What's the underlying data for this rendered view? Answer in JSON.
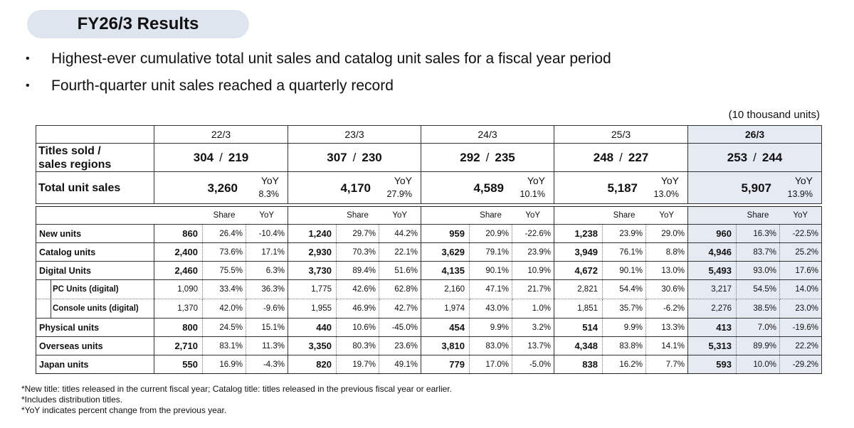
{
  "title": "FY26/3 Results",
  "bullets": [
    "Highest-ever cumulative total unit sales and catalog unit sales for a fiscal year period",
    "Fourth-quarter unit sales reached a quarterly record"
  ],
  "unit_note": "(10 thousand units)",
  "summary": {
    "periods": [
      "22/3",
      "23/3",
      "24/3",
      "25/3",
      "26/3"
    ],
    "titles_label_line1": "Titles sold /",
    "titles_label_line2": "sales regions",
    "titles": [
      {
        "a": "304",
        "b": "219"
      },
      {
        "a": "307",
        "b": "230"
      },
      {
        "a": "292",
        "b": "235"
      },
      {
        "a": "248",
        "b": "227"
      },
      {
        "a": "253",
        "b": "244"
      }
    ],
    "slash": "/",
    "total_label": "Total unit sales",
    "yoy_label": "YoY",
    "totals": [
      {
        "value": "3,260",
        "yoy": "8.3%"
      },
      {
        "value": "4,170",
        "yoy": "27.9%"
      },
      {
        "value": "4,589",
        "yoy": "10.1%"
      },
      {
        "value": "5,187",
        "yoy": "13.0%"
      },
      {
        "value": "5,907",
        "yoy": "13.9%"
      }
    ]
  },
  "detail": {
    "share_label": "Share",
    "yoy_label": "YoY",
    "rows": [
      {
        "label": "New units",
        "cells": [
          [
            "860",
            "26.4%",
            "-10.4%"
          ],
          [
            "1,240",
            "29.7%",
            "44.2%"
          ],
          [
            "959",
            "20.9%",
            "-22.6%"
          ],
          [
            "1,238",
            "23.9%",
            "29.0%"
          ],
          [
            "960",
            "16.3%",
            "-22.5%"
          ]
        ]
      },
      {
        "label": "Catalog units",
        "cells": [
          [
            "2,400",
            "73.6%",
            "17.1%"
          ],
          [
            "2,930",
            "70.3%",
            "22.1%"
          ],
          [
            "3,629",
            "79.1%",
            "23.9%"
          ],
          [
            "3,949",
            "76.1%",
            "8.8%"
          ],
          [
            "4,946",
            "83.7%",
            "25.2%"
          ]
        ]
      },
      {
        "label": "Digital Units",
        "cells": [
          [
            "2,460",
            "75.5%",
            "6.3%"
          ],
          [
            "3,730",
            "89.4%",
            "51.6%"
          ],
          [
            "4,135",
            "90.1%",
            "10.9%"
          ],
          [
            "4,672",
            "90.1%",
            "13.0%"
          ],
          [
            "5,493",
            "93.0%",
            "17.6%"
          ]
        ]
      },
      {
        "label": "PC Units (digital)",
        "cells": [
          [
            "1,090",
            "33.4%",
            "36.3%"
          ],
          [
            "1,775",
            "42.6%",
            "62.8%"
          ],
          [
            "2,160",
            "47.1%",
            "21.7%"
          ],
          [
            "2,821",
            "54.4%",
            "30.6%"
          ],
          [
            "3,217",
            "54.5%",
            "14.0%"
          ]
        ]
      },
      {
        "label": "Console units (digital)",
        "cells": [
          [
            "1,370",
            "42.0%",
            "-9.6%"
          ],
          [
            "1,955",
            "46.9%",
            "42.7%"
          ],
          [
            "1,974",
            "43.0%",
            "1.0%"
          ],
          [
            "1,851",
            "35.7%",
            "-6.2%"
          ],
          [
            "2,276",
            "38.5%",
            "23.0%"
          ]
        ]
      },
      {
        "label": "Physical units",
        "cells": [
          [
            "800",
            "24.5%",
            "15.1%"
          ],
          [
            "440",
            "10.6%",
            "-45.0%"
          ],
          [
            "454",
            "9.9%",
            "3.2%"
          ],
          [
            "514",
            "9.9%",
            "13.3%"
          ],
          [
            "413",
            "7.0%",
            "-19.6%"
          ]
        ]
      },
      {
        "label": "Overseas units",
        "cells": [
          [
            "2,710",
            "83.1%",
            "11.3%"
          ],
          [
            "3,350",
            "80.3%",
            "23.6%"
          ],
          [
            "3,810",
            "83.0%",
            "13.7%"
          ],
          [
            "4,348",
            "83.8%",
            "14.1%"
          ],
          [
            "5,313",
            "89.9%",
            "22.2%"
          ]
        ]
      },
      {
        "label": "Japan units",
        "cells": [
          [
            "550",
            "16.9%",
            "-4.3%"
          ],
          [
            "820",
            "19.7%",
            "49.1%"
          ],
          [
            "779",
            "17.0%",
            "-5.0%"
          ],
          [
            "838",
            "16.2%",
            "7.7%"
          ],
          [
            "593",
            "10.0%",
            "-29.2%"
          ]
        ]
      }
    ]
  },
  "footnotes": [
    "*New title: titles released in the current fiscal year; Catalog title: titles released in the previous fiscal year or earlier.",
    "*Includes distribution titles.",
    "*YoY indicates percent change from the previous year."
  ],
  "colors": {
    "highlight": "#e6ebf3",
    "title_pill": "#dfe5ef"
  }
}
